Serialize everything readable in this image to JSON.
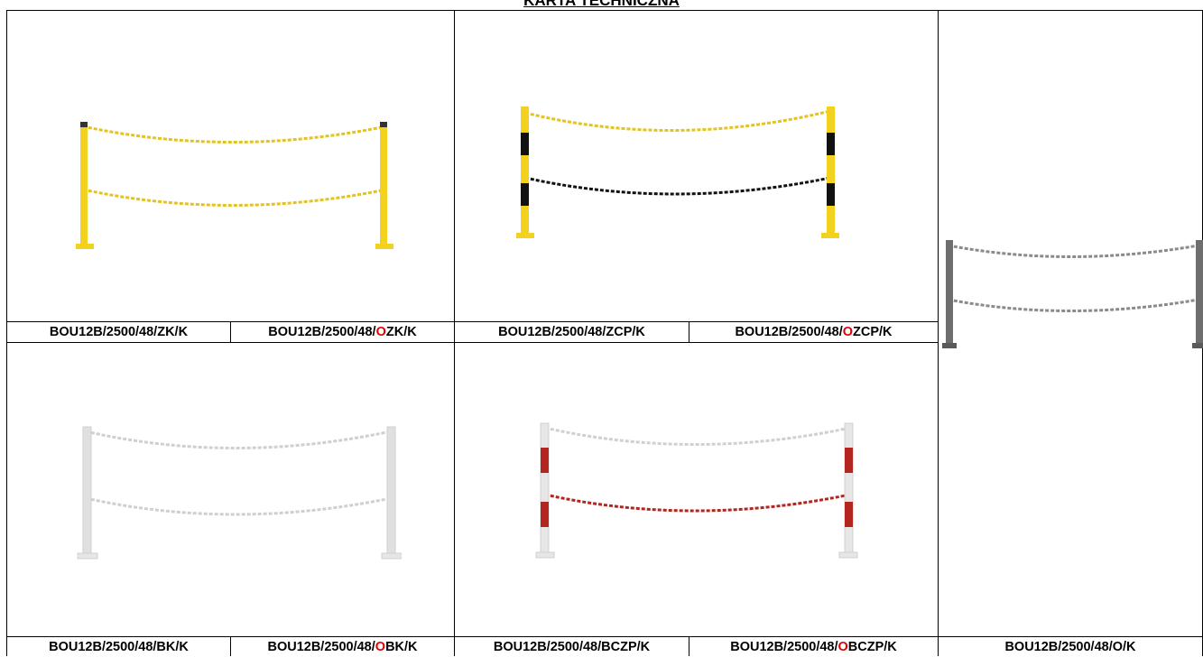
{
  "document": {
    "title": "KARTA TECHNICZNA"
  },
  "variants": {
    "zk": {
      "pre": "BOU12B/2500/48/",
      "o": "",
      "post": "ZK/K"
    },
    "ozk": {
      "pre": "BOU12B/2500/48/",
      "o": "O",
      "post": "ZK/K"
    },
    "zcp": {
      "pre": "BOU12B/2500/48/",
      "o": "",
      "post": "ZCP/K"
    },
    "ozcp": {
      "pre": "BOU12B/2500/48/",
      "o": "O",
      "post": "ZCP/K"
    },
    "bk": {
      "pre": "BOU12B/2500/48/",
      "o": "",
      "post": "BK/K"
    },
    "obk": {
      "pre": "BOU12B/2500/48/",
      "o": "O",
      "post": "BK/K"
    },
    "bczp": {
      "pre": "BOU12B/2500/48/",
      "o": "",
      "post": "BCZP/K"
    },
    "obczp": {
      "pre": "BOU12B/2500/48/",
      "o": "O",
      "post": "BCZP/K"
    },
    "ok": {
      "pre": "BOU12B/2500/48/O/K",
      "o": "",
      "post": ""
    }
  },
  "colors": {
    "yellow": "#f2d21f",
    "black": "#111111",
    "white_post": "#e6e6e6",
    "red": "#b3261e",
    "galvanized": "#7a7a7a",
    "highlight_o": "#e00000"
  }
}
